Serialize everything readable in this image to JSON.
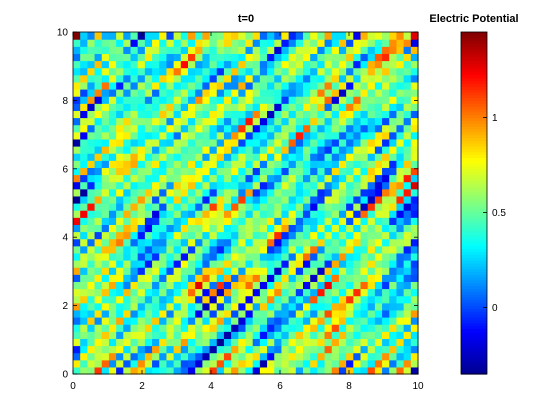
{
  "chart_data": {
    "type": "heatmap",
    "title": "t=0",
    "colorbar_title": "Electric Potential",
    "colormap": "jet",
    "colormap_stops": [
      "#00008f",
      "#0000ff",
      "#0080ff",
      "#00ffff",
      "#80ff80",
      "#ffff00",
      "#ff8000",
      "#ff0000",
      "#800000"
    ],
    "xlim": [
      0,
      10
    ],
    "ylim": [
      0,
      10
    ],
    "xticks": [
      0,
      2,
      4,
      6,
      8,
      10
    ],
    "yticks": [
      0,
      2,
      4,
      6,
      8,
      10
    ],
    "xtick_labels": [
      "0",
      "2",
      "4",
      "6",
      "8",
      "10"
    ],
    "ytick_labels": [
      "0",
      "2",
      "4",
      "6",
      "8",
      "10"
    ],
    "clim": [
      -0.35,
      1.45
    ],
    "colorbar_ticks": [
      0,
      0.5,
      1
    ],
    "colorbar_tick_labels": [
      "0",
      "0.5",
      "1"
    ],
    "grid": false,
    "field_description_value_range": [
      -0.35,
      1.45
    ]
  }
}
